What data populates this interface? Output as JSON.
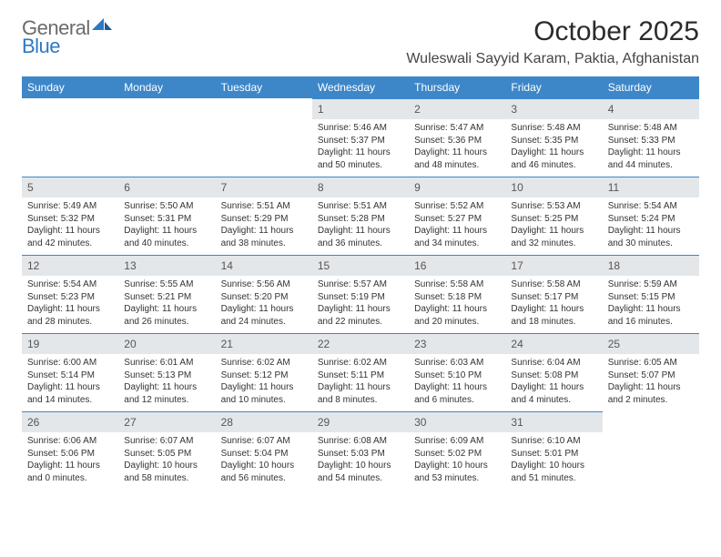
{
  "brand": {
    "general": "General",
    "blue": "Blue"
  },
  "title": "October 2025",
  "location": "Wuleswali Sayyid Karam, Paktia, Afghanistan",
  "colors": {
    "header_bg": "#3d87c9",
    "header_text": "#ffffff",
    "daynum_bg": "#e4e7ea",
    "daynum_border": "#3d87c9",
    "body_text": "#333333",
    "logo_gray": "#6b6b6b",
    "logo_blue": "#2f78c2"
  },
  "weekdays": [
    "Sunday",
    "Monday",
    "Tuesday",
    "Wednesday",
    "Thursday",
    "Friday",
    "Saturday"
  ],
  "weeks": [
    [
      null,
      null,
      null,
      {
        "n": "1",
        "sr": "5:46 AM",
        "ss": "5:37 PM",
        "dh": "11",
        "dm": "50"
      },
      {
        "n": "2",
        "sr": "5:47 AM",
        "ss": "5:36 PM",
        "dh": "11",
        "dm": "48"
      },
      {
        "n": "3",
        "sr": "5:48 AM",
        "ss": "5:35 PM",
        "dh": "11",
        "dm": "46"
      },
      {
        "n": "4",
        "sr": "5:48 AM",
        "ss": "5:33 PM",
        "dh": "11",
        "dm": "44"
      }
    ],
    [
      {
        "n": "5",
        "sr": "5:49 AM",
        "ss": "5:32 PM",
        "dh": "11",
        "dm": "42"
      },
      {
        "n": "6",
        "sr": "5:50 AM",
        "ss": "5:31 PM",
        "dh": "11",
        "dm": "40"
      },
      {
        "n": "7",
        "sr": "5:51 AM",
        "ss": "5:29 PM",
        "dh": "11",
        "dm": "38"
      },
      {
        "n": "8",
        "sr": "5:51 AM",
        "ss": "5:28 PM",
        "dh": "11",
        "dm": "36"
      },
      {
        "n": "9",
        "sr": "5:52 AM",
        "ss": "5:27 PM",
        "dh": "11",
        "dm": "34"
      },
      {
        "n": "10",
        "sr": "5:53 AM",
        "ss": "5:25 PM",
        "dh": "11",
        "dm": "32"
      },
      {
        "n": "11",
        "sr": "5:54 AM",
        "ss": "5:24 PM",
        "dh": "11",
        "dm": "30"
      }
    ],
    [
      {
        "n": "12",
        "sr": "5:54 AM",
        "ss": "5:23 PM",
        "dh": "11",
        "dm": "28"
      },
      {
        "n": "13",
        "sr": "5:55 AM",
        "ss": "5:21 PM",
        "dh": "11",
        "dm": "26"
      },
      {
        "n": "14",
        "sr": "5:56 AM",
        "ss": "5:20 PM",
        "dh": "11",
        "dm": "24"
      },
      {
        "n": "15",
        "sr": "5:57 AM",
        "ss": "5:19 PM",
        "dh": "11",
        "dm": "22"
      },
      {
        "n": "16",
        "sr": "5:58 AM",
        "ss": "5:18 PM",
        "dh": "11",
        "dm": "20"
      },
      {
        "n": "17",
        "sr": "5:58 AM",
        "ss": "5:17 PM",
        "dh": "11",
        "dm": "18"
      },
      {
        "n": "18",
        "sr": "5:59 AM",
        "ss": "5:15 PM",
        "dh": "11",
        "dm": "16"
      }
    ],
    [
      {
        "n": "19",
        "sr": "6:00 AM",
        "ss": "5:14 PM",
        "dh": "11",
        "dm": "14"
      },
      {
        "n": "20",
        "sr": "6:01 AM",
        "ss": "5:13 PM",
        "dh": "11",
        "dm": "12"
      },
      {
        "n": "21",
        "sr": "6:02 AM",
        "ss": "5:12 PM",
        "dh": "11",
        "dm": "10"
      },
      {
        "n": "22",
        "sr": "6:02 AM",
        "ss": "5:11 PM",
        "dh": "11",
        "dm": "8"
      },
      {
        "n": "23",
        "sr": "6:03 AM",
        "ss": "5:10 PM",
        "dh": "11",
        "dm": "6"
      },
      {
        "n": "24",
        "sr": "6:04 AM",
        "ss": "5:08 PM",
        "dh": "11",
        "dm": "4"
      },
      {
        "n": "25",
        "sr": "6:05 AM",
        "ss": "5:07 PM",
        "dh": "11",
        "dm": "2"
      }
    ],
    [
      {
        "n": "26",
        "sr": "6:06 AM",
        "ss": "5:06 PM",
        "dh": "11",
        "dm": "0"
      },
      {
        "n": "27",
        "sr": "6:07 AM",
        "ss": "5:05 PM",
        "dh": "10",
        "dm": "58"
      },
      {
        "n": "28",
        "sr": "6:07 AM",
        "ss": "5:04 PM",
        "dh": "10",
        "dm": "56"
      },
      {
        "n": "29",
        "sr": "6:08 AM",
        "ss": "5:03 PM",
        "dh": "10",
        "dm": "54"
      },
      {
        "n": "30",
        "sr": "6:09 AM",
        "ss": "5:02 PM",
        "dh": "10",
        "dm": "53"
      },
      {
        "n": "31",
        "sr": "6:10 AM",
        "ss": "5:01 PM",
        "dh": "10",
        "dm": "51"
      },
      null
    ]
  ],
  "labels": {
    "sunrise": "Sunrise:",
    "sunset": "Sunset:",
    "daylight": "Daylight:",
    "hours": "hours",
    "and": "and",
    "minutes": "minutes."
  }
}
